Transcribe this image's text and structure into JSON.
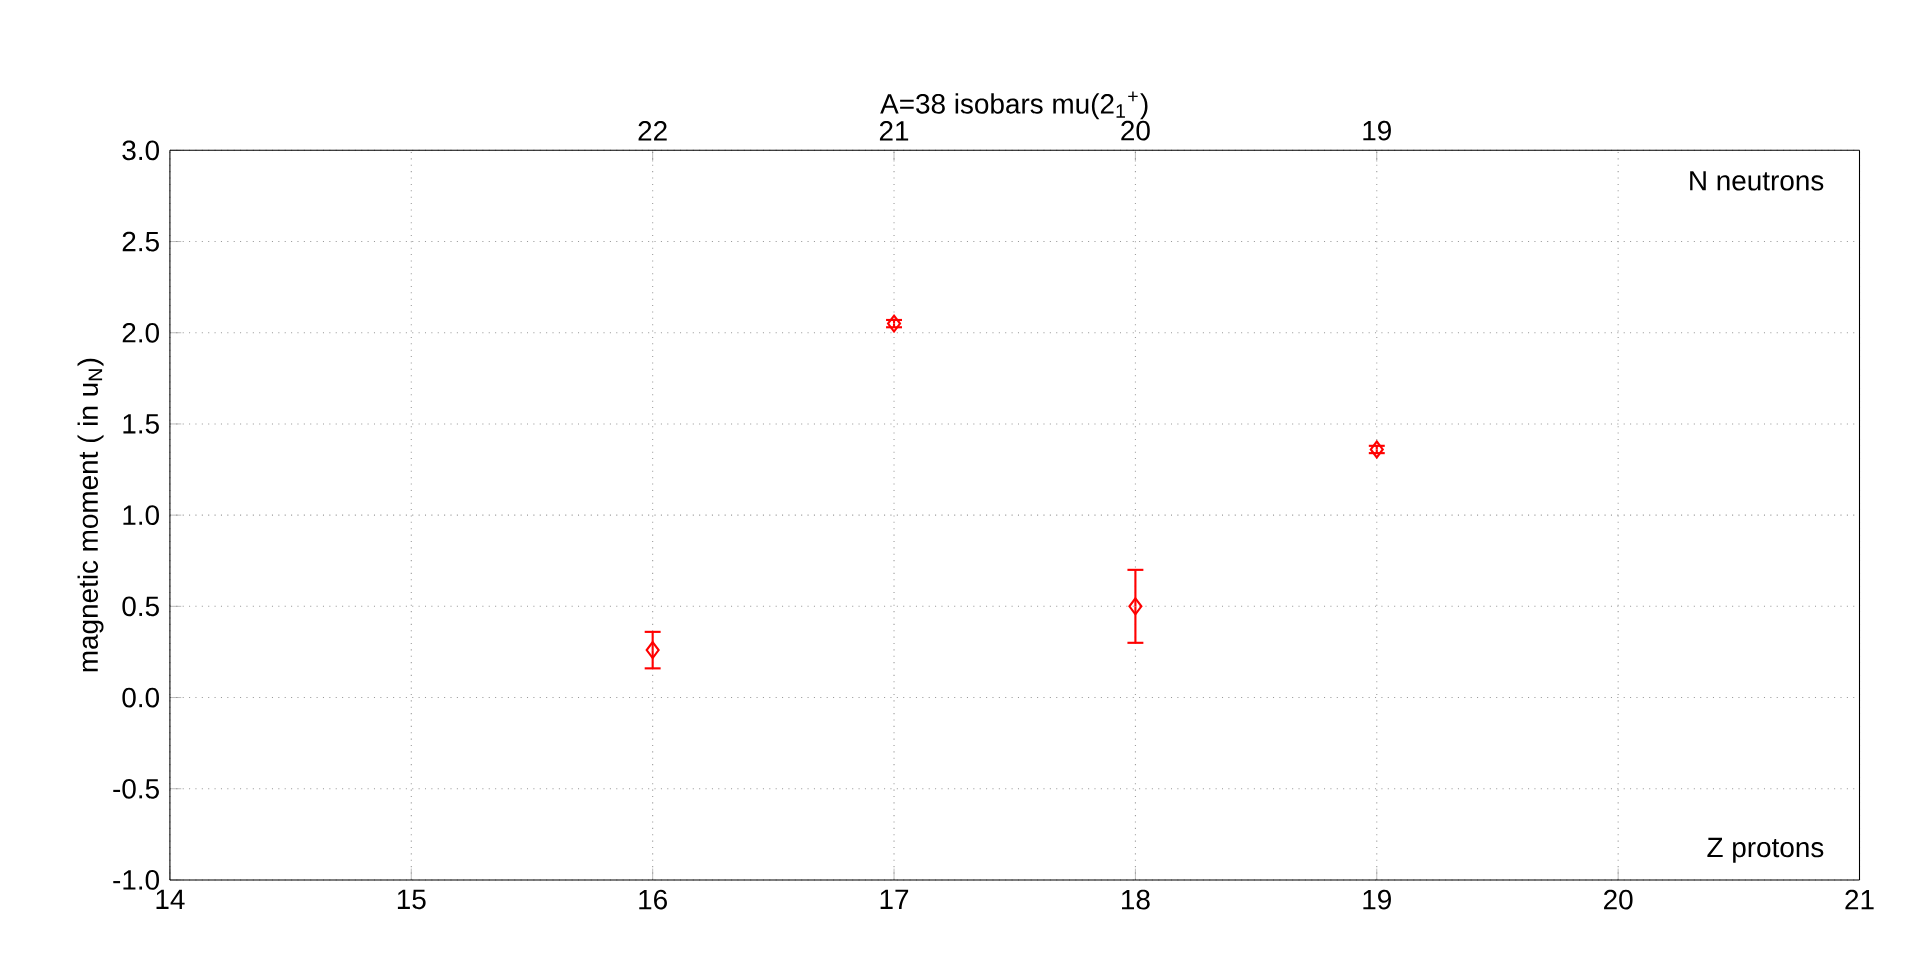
{
  "chart_data": {
    "type": "scatter",
    "title": "A=38 isobars mu(2$_{1}$$^{+}$)",
    "ylabel": "magnetic moment ( in u$_{N}$)",
    "x": [
      16,
      17,
      18,
      19
    ],
    "series": [
      {
        "color": "#ff0000",
        "values": [
          0.26,
          2.05,
          0.5,
          1.36
        ],
        "errors": [
          0.1,
          0.02,
          0.2,
          0.02
        ]
      }
    ],
    "xlim": [
      14,
      21
    ],
    "xticks": [
      14,
      15,
      16,
      17,
      18,
      19,
      20,
      21
    ],
    "ylim": [
      -1,
      3
    ],
    "yticks": [
      {
        "value": -1,
        "label": "-1.0"
      },
      -0.5,
      {
        "value": 0,
        "label": "0.0"
      },
      0.5,
      {
        "value": 1,
        "label": "1.0"
      },
      1.5,
      {
        "value": 2,
        "label": "2.0"
      },
      2.5,
      {
        "value": 3,
        "label": "3.0"
      }
    ],
    "x2lim": [
      24,
      17
    ],
    "x2ticks": [
      22,
      21,
      20,
      19
    ],
    "grid": true,
    "marker": "diamond",
    "annotations": [
      "N neutrons",
      "Z protons"
    ]
  }
}
